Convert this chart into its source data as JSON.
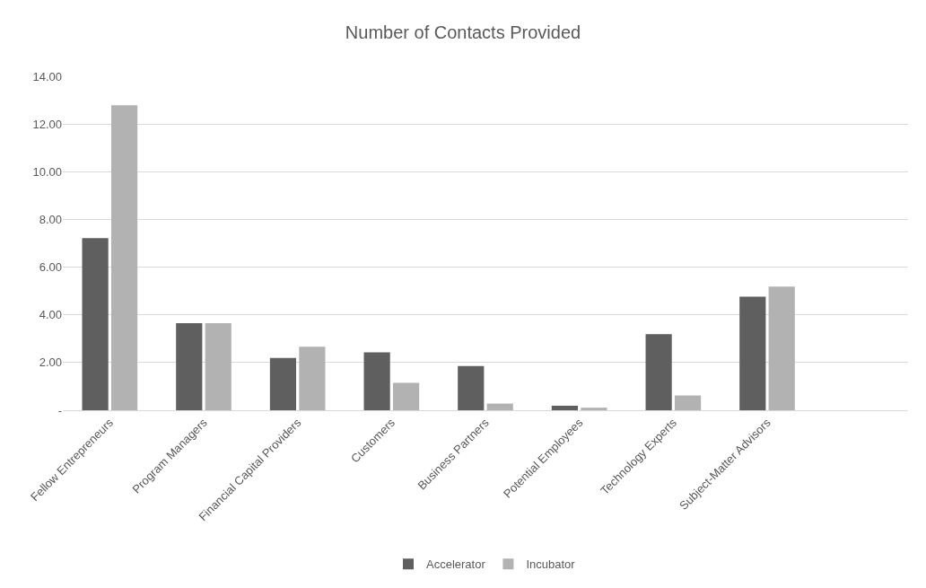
{
  "chart_data": {
    "type": "bar",
    "title": "Number of Contacts Provided",
    "categories": [
      "Fellow Entrepreneurs",
      "Program Managers",
      "Financial Capital Providers",
      "Customers",
      "Business Partners",
      "Potential Employees",
      "Technology Experts",
      "Subject-Matter Advisors",
      null
    ],
    "series": [
      {
        "name": "Accelerator",
        "color": "#5f5f5f",
        "values": [
          7.22,
          3.65,
          2.19,
          2.43,
          1.85,
          0.19,
          3.19,
          4.76,
          null
        ]
      },
      {
        "name": "Incubator",
        "color": "#b2b2b2",
        "values": [
          12.79,
          3.65,
          2.66,
          1.15,
          0.28,
          0.11,
          0.62,
          5.18,
          null
        ]
      }
    ],
    "ylim": [
      0,
      14
    ],
    "yticks": [
      {
        "value": 0,
        "label": "-"
      },
      {
        "value": 2,
        "label": "2.00"
      },
      {
        "value": 4,
        "label": "4.00"
      },
      {
        "value": 6,
        "label": "6.00"
      },
      {
        "value": 8,
        "label": "8.00"
      },
      {
        "value": 10,
        "label": "10.00"
      },
      {
        "value": 12,
        "label": "12.00"
      },
      {
        "value": 14,
        "label": "14.00"
      }
    ],
    "grid": "y",
    "legend": "bottom"
  }
}
